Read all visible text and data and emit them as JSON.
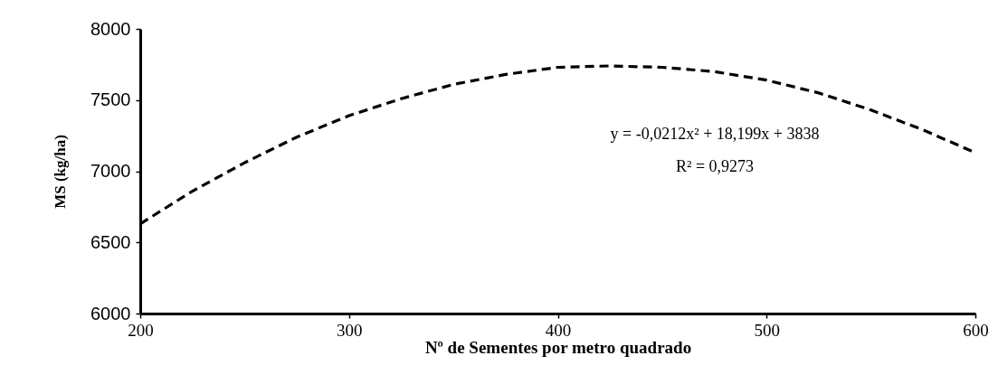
{
  "chart_data": {
    "type": "line",
    "xlabel": "Nº de Sementes por metro quadrado",
    "ylabel": "MS (kg/ha)",
    "x": [
      200,
      225,
      250,
      275,
      300,
      325,
      350,
      375,
      400,
      425,
      450,
      475,
      500,
      525,
      550,
      575,
      600
    ],
    "series": [
      {
        "color": "#000000",
        "line_style": "dashed",
        "values": [
          6630,
          6860,
          7060,
          7240,
          7390,
          7510,
          7610,
          7680,
          7730,
          7740,
          7730,
          7700,
          7640,
          7550,
          7430,
          7290,
          7130
        ]
      }
    ],
    "xlim": [
      200,
      600
    ],
    "xticks": [
      200,
      300,
      400,
      500,
      600
    ],
    "ylim": [
      6000,
      8000
    ],
    "yticks": [
      6000,
      6500,
      7000,
      7500,
      8000
    ],
    "annotations": [
      "y = -0,0212x² + 18,199x + 3838",
      "R² = 0,9273"
    ],
    "marker": "none"
  }
}
